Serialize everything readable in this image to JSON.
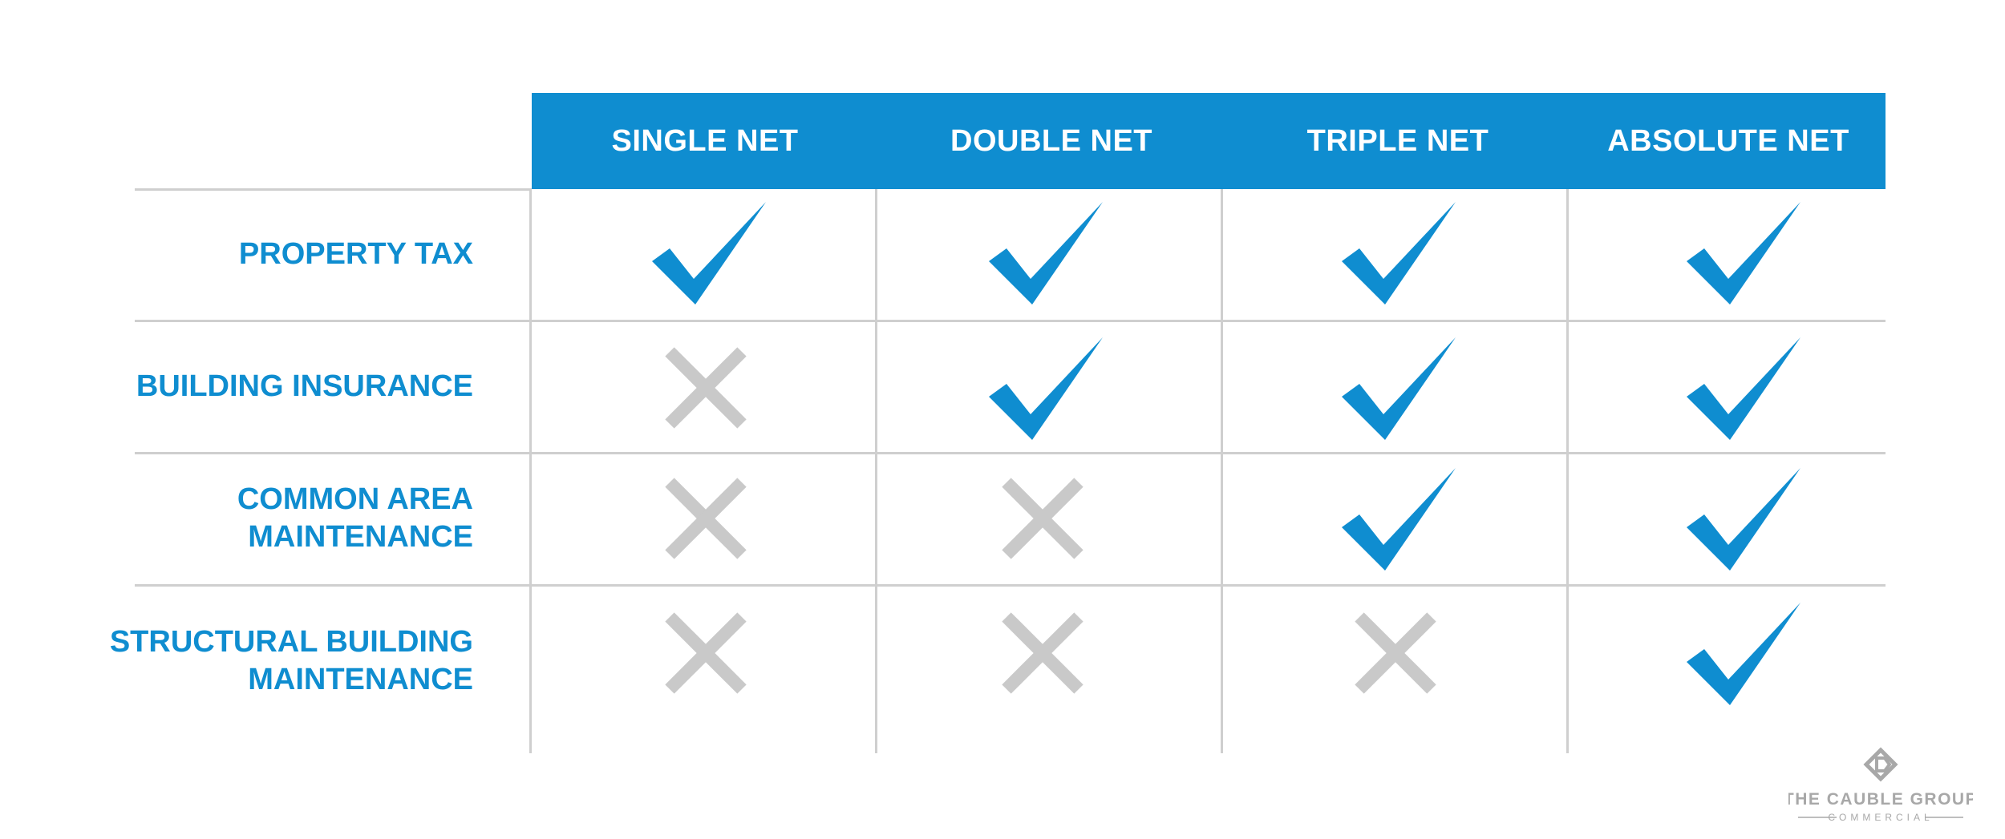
{
  "colors": {
    "accent": "#0f8dd0",
    "cross": "#c9c9c9",
    "grid": "#cfcfcf",
    "logo": "#a8a8a8"
  },
  "columns": [
    "SINGLE NET",
    "DOUBLE NET",
    "TRIPLE NET",
    "ABSOLUTE NET"
  ],
  "rows": [
    {
      "label_lines": [
        "PROPERTY TAX"
      ],
      "covered": [
        true,
        true,
        true,
        true
      ]
    },
    {
      "label_lines": [
        "BUILDING INSURANCE"
      ],
      "covered": [
        false,
        true,
        true,
        true
      ]
    },
    {
      "label_lines": [
        "COMMON AREA",
        "MAINTENANCE"
      ],
      "covered": [
        false,
        false,
        true,
        true
      ]
    },
    {
      "label_lines": [
        "STRUCTURAL BUILDING",
        "MAINTENANCE"
      ],
      "covered": [
        false,
        false,
        false,
        true
      ]
    }
  ],
  "logo": {
    "name": "THE CAUBLE GROUP",
    "sub": "COMMERCIAL"
  }
}
